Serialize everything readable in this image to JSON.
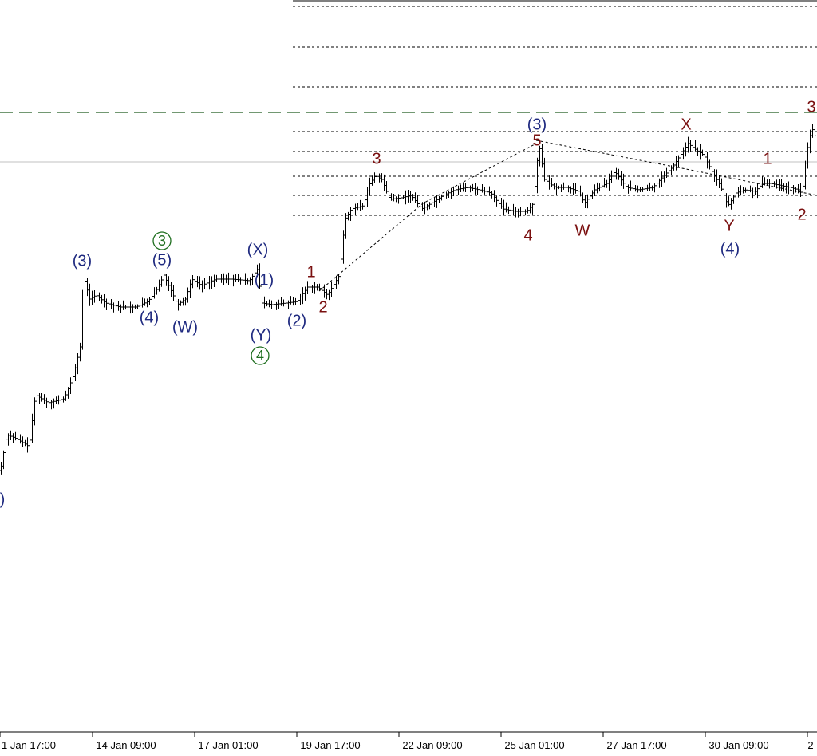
{
  "chart_data": {
    "type": "candlestick",
    "colors": {
      "navy": "#1f2a80",
      "red": "#7a1010",
      "green": "#1e6e1e",
      "bars": "#000000",
      "grid": "#000000",
      "resistance": "#1e5a1e",
      "price_line": "#c0c0c0"
    },
    "x_ticks": [
      "1 Jan 17:00",
      "14 Jan 09:00",
      "17 Jan 01:00",
      "19 Jan 17:00",
      "22 Jan 09:00",
      "25 Jan 01:00",
      "27 Jan 17:00",
      "30 Jan 09:00",
      "2"
    ],
    "price_path": [
      [
        0,
        590
      ],
      [
        8,
        545
      ],
      [
        20,
        550
      ],
      [
        36,
        560
      ],
      [
        44,
        495
      ],
      [
        60,
        505
      ],
      [
        80,
        500
      ],
      [
        92,
        470
      ],
      [
        100,
        435
      ],
      [
        104,
        345
      ],
      [
        112,
        375
      ],
      [
        120,
        370
      ],
      [
        132,
        380
      ],
      [
        150,
        385
      ],
      [
        170,
        385
      ],
      [
        185,
        378
      ],
      [
        195,
        365
      ],
      [
        205,
        345
      ],
      [
        212,
        360
      ],
      [
        222,
        382
      ],
      [
        232,
        375
      ],
      [
        240,
        350
      ],
      [
        252,
        358
      ],
      [
        270,
        350
      ],
      [
        290,
        350
      ],
      [
        312,
        352
      ],
      [
        322,
        338
      ],
      [
        328,
        380
      ],
      [
        340,
        382
      ],
      [
        358,
        380
      ],
      [
        372,
        378
      ],
      [
        385,
        360
      ],
      [
        398,
        360
      ],
      [
        410,
        370
      ],
      [
        425,
        345
      ],
      [
        432,
        275
      ],
      [
        440,
        262
      ],
      [
        455,
        258
      ],
      [
        462,
        232
      ],
      [
        470,
        220
      ],
      [
        478,
        225
      ],
      [
        488,
        250
      ],
      [
        502,
        248
      ],
      [
        515,
        245
      ],
      [
        528,
        262
      ],
      [
        540,
        255
      ],
      [
        555,
        245
      ],
      [
        570,
        238
      ],
      [
        585,
        235
      ],
      [
        600,
        238
      ],
      [
        615,
        242
      ],
      [
        630,
        262
      ],
      [
        645,
        265
      ],
      [
        660,
        265
      ],
      [
        668,
        255
      ],
      [
        675,
        180
      ],
      [
        682,
        225
      ],
      [
        695,
        235
      ],
      [
        710,
        235
      ],
      [
        725,
        240
      ],
      [
        732,
        255
      ],
      [
        745,
        238
      ],
      [
        760,
        230
      ],
      [
        770,
        215
      ],
      [
        785,
        235
      ],
      [
        800,
        238
      ],
      [
        818,
        235
      ],
      [
        830,
        222
      ],
      [
        842,
        210
      ],
      [
        852,
        195
      ],
      [
        862,
        180
      ],
      [
        872,
        188
      ],
      [
        882,
        195
      ],
      [
        892,
        215
      ],
      [
        902,
        232
      ],
      [
        912,
        258
      ],
      [
        922,
        242
      ],
      [
        932,
        238
      ],
      [
        946,
        240
      ],
      [
        955,
        230
      ],
      [
        965,
        230
      ],
      [
        975,
        232
      ],
      [
        990,
        235
      ],
      [
        1000,
        238
      ],
      [
        1005,
        243
      ],
      [
        1010,
        195
      ],
      [
        1017,
        160
      ],
      [
        1024,
        178
      ]
    ],
    "dotted_levels_y": [
      8,
      59,
      109,
      165,
      190,
      221,
      245,
      270
    ],
    "dotted_start_x": 367,
    "resistance_y": 141,
    "price_line_y": 203,
    "trend_lines": [
      [
        [
          400,
          365
        ],
        [
          530,
          255
        ],
        [
          672,
          180
        ]
      ],
      [
        [
          672,
          176
        ],
        [
          860,
          212
        ],
        [
          1024,
          245
        ]
      ]
    ],
    "labels": [
      {
        "text": ")",
        "x": 3,
        "y": 627,
        "color": "navy"
      },
      {
        "text": "(3)",
        "x": 103,
        "y": 328,
        "color": "navy"
      },
      {
        "text": "(5)",
        "x": 203,
        "y": 327,
        "color": "navy"
      },
      {
        "text": "(4)",
        "x": 187,
        "y": 399,
        "color": "navy"
      },
      {
        "text": "(W)",
        "x": 232,
        "y": 411,
        "color": "navy"
      },
      {
        "text": "(X)",
        "x": 323,
        "y": 314,
        "color": "navy"
      },
      {
        "text": "(1)",
        "x": 331,
        "y": 352,
        "color": "navy"
      },
      {
        "text": "(Y)",
        "x": 327,
        "y": 421,
        "color": "navy"
      },
      {
        "text": "(2)",
        "x": 372,
        "y": 403,
        "color": "navy"
      },
      {
        "text": "(3)",
        "x": 673,
        "y": 157,
        "color": "navy"
      },
      {
        "text": "(4)",
        "x": 915,
        "y": 313,
        "color": "navy"
      },
      {
        "text": "1",
        "x": 390,
        "y": 342,
        "color": "red"
      },
      {
        "text": "2",
        "x": 405,
        "y": 386,
        "color": "red"
      },
      {
        "text": "3",
        "x": 472,
        "y": 200,
        "color": "red"
      },
      {
        "text": "5",
        "x": 673,
        "y": 177,
        "color": "red"
      },
      {
        "text": "4",
        "x": 662,
        "y": 296,
        "color": "red"
      },
      {
        "text": "W",
        "x": 730,
        "y": 290,
        "color": "red"
      },
      {
        "text": "X",
        "x": 860,
        "y": 157,
        "color": "red"
      },
      {
        "text": "Y",
        "x": 914,
        "y": 284,
        "color": "red"
      },
      {
        "text": "1",
        "x": 962,
        "y": 200,
        "color": "red"
      },
      {
        "text": "2",
        "x": 1005,
        "y": 270,
        "color": "red"
      },
      {
        "text": "3",
        "x": 1017,
        "y": 135,
        "color": "red"
      }
    ],
    "circled_labels": [
      {
        "text": "3",
        "x": 203,
        "y": 302,
        "color": "green"
      },
      {
        "text": "4",
        "x": 326,
        "y": 446,
        "color": "green"
      }
    ]
  }
}
